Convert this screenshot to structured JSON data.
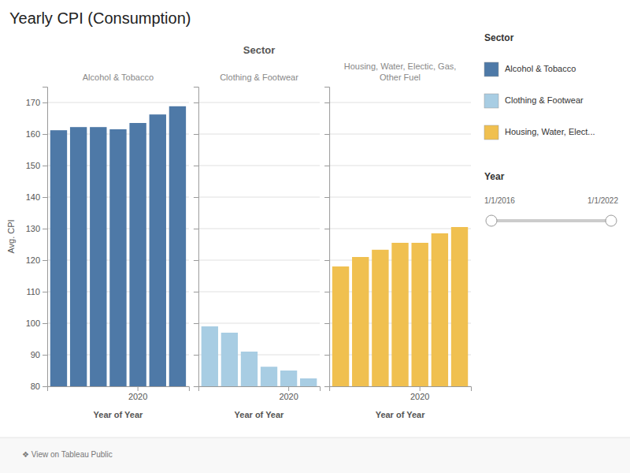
{
  "title": "Yearly CPI (Consumption)",
  "facet_title": "Sector",
  "legend_title": "Sector",
  "legend": "right",
  "annotations": [
    "Year",
    "1/1/2016",
    "1/1/2022",
    "❖ View on Tableau Public"
  ],
  "chart_data": [
    {
      "type": "bar",
      "title": "Alcohol & Tobacco",
      "xlabel": "Year of Year",
      "ylabel": "Avg. CPI",
      "categories": [
        null,
        null,
        null,
        null,
        "2020",
        null,
        null
      ],
      "series": [
        {
          "name": "Alcohol & Tobacco",
          "color": "#4e79a7",
          "values": [
            161.2,
            162.2,
            162.2,
            161.5,
            163.5,
            166.2,
            168.8
          ]
        }
      ],
      "ylim": [
        80,
        175
      ],
      "yticks": [
        80,
        90,
        100,
        110,
        120,
        130,
        140,
        150,
        160,
        170
      ],
      "grid": true
    },
    {
      "type": "bar",
      "title": "Clothing & Footwear",
      "xlabel": "Year of Year",
      "categories": [
        null,
        null,
        null,
        null,
        "2020",
        null
      ],
      "series": [
        {
          "name": "Clothing & Footwear",
          "color": "#a8cde3",
          "values": [
            99.0,
            97.0,
            91.0,
            86.2,
            85.0,
            82.5
          ]
        }
      ],
      "ylim": [
        80,
        175
      ],
      "yticks": [
        80,
        90,
        100,
        110,
        120,
        130,
        140,
        150,
        160,
        170
      ],
      "grid": true,
      "tick_labels": "x"
    },
    {
      "type": "bar",
      "title": "Housing, Water, Electic, Gas,\nOther Fuel",
      "xlabel": "Year of Year",
      "categories": [
        null,
        null,
        null,
        null,
        "2020",
        null,
        null
      ],
      "series": [
        {
          "name": "Housing, Water, Elect...",
          "color": "#f0c050",
          "values": [
            118.0,
            121.0,
            123.3,
            125.5,
            125.5,
            128.5,
            130.5
          ]
        }
      ],
      "ylim": [
        80,
        175
      ],
      "yticks": [
        80,
        90,
        100,
        110,
        120,
        130,
        140,
        150,
        160,
        170
      ],
      "grid": true,
      "tick_labels": "x"
    }
  ]
}
